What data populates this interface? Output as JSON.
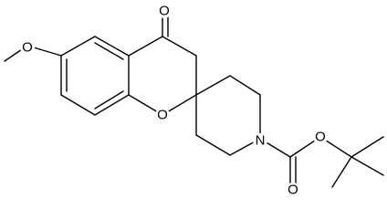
{
  "atoms": {
    "ketone_oxygen": "O",
    "methoxy_oxygen": "O",
    "ring_oxygen": "O",
    "nitrogen": "N",
    "ester_oxygen": "O",
    "carbonyl_oxygen": "O"
  }
}
